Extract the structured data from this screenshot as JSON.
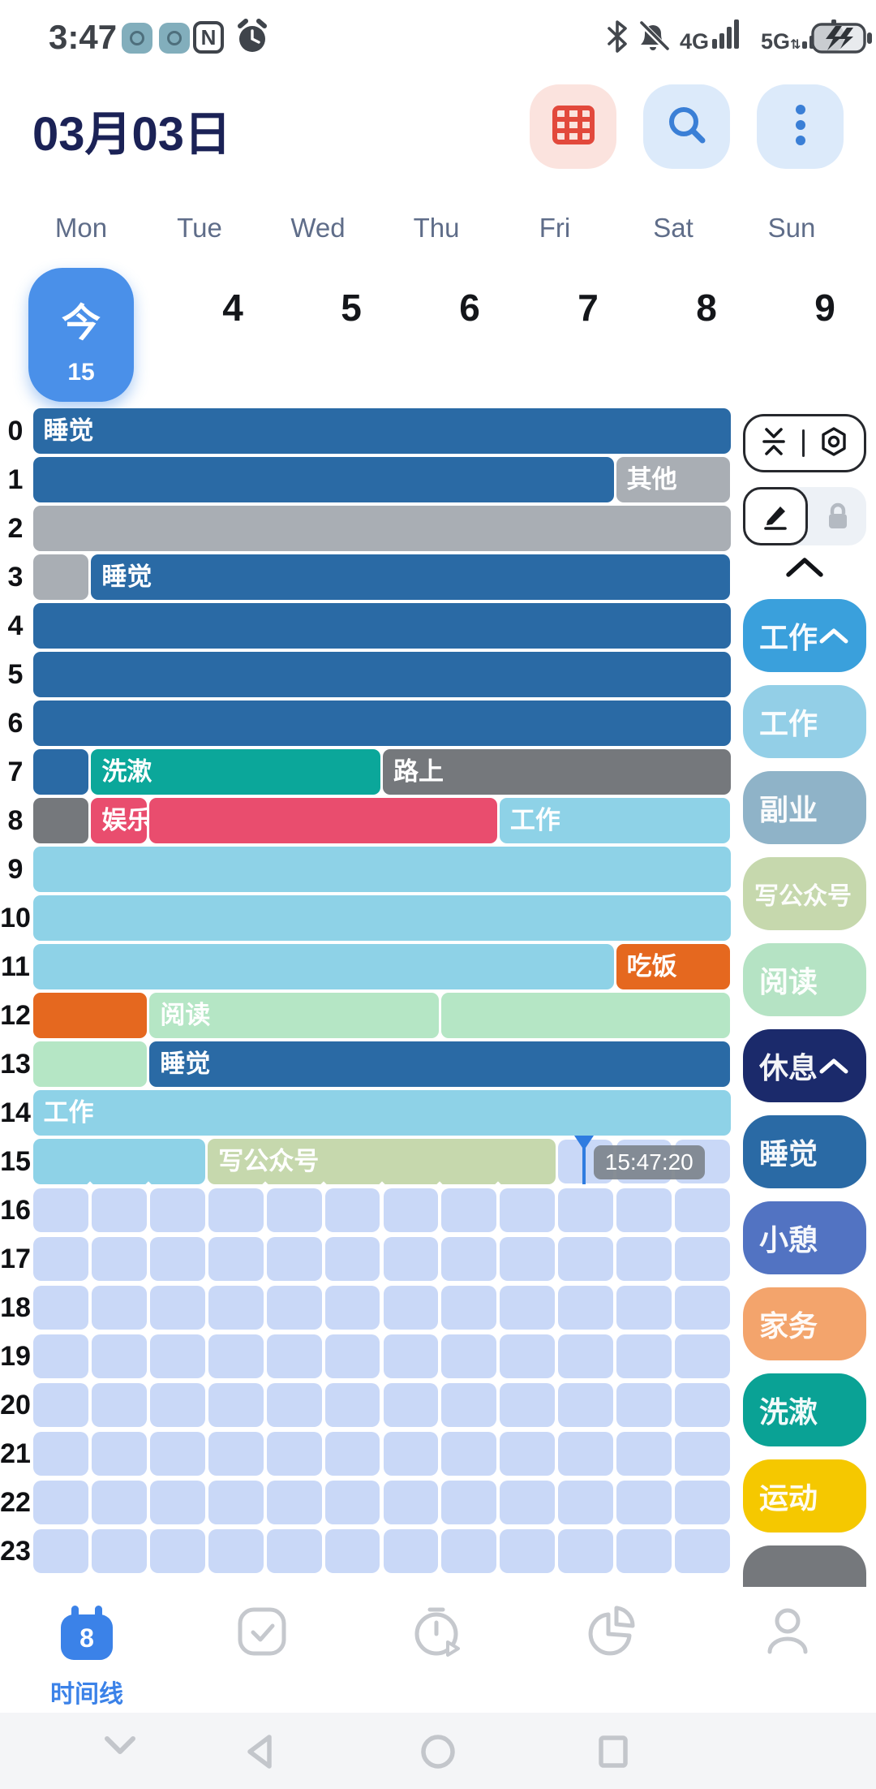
{
  "status_bar": {
    "time": "3:47",
    "network_4g": "4G",
    "network_5g": "5G"
  },
  "header": {
    "date": "03月03日",
    "buttons": [
      {
        "icon": "grid-calendar-icon",
        "bg": "#fbe3de",
        "fg": "#e2493c"
      },
      {
        "icon": "search-icon",
        "bg": "#dceafa",
        "fg": "#3a7fd6"
      },
      {
        "icon": "more-dots-icon",
        "bg": "#dceafa",
        "fg": "#3a7fd6"
      }
    ]
  },
  "week": {
    "days": [
      "Mon",
      "Tue",
      "Wed",
      "Thu",
      "Fri",
      "Sat",
      "Sun"
    ],
    "dates": [
      {
        "label": "今",
        "sub": "15",
        "today": true
      },
      {
        "label": "4"
      },
      {
        "label": "5"
      },
      {
        "label": "6"
      },
      {
        "label": "7"
      },
      {
        "label": "8"
      },
      {
        "label": "9"
      }
    ]
  },
  "palette": {
    "darkblue": "#2a6aa5",
    "gray": "#a9aeb4",
    "darkgray": "#75787c",
    "teal": "#0ba79a",
    "pink": "#e94d6e",
    "cyan": "#8ed2e7",
    "orange": "#e5681f",
    "mint": "#b5e6c5",
    "sage": "#c6d8ad",
    "empty_cell": "#c9d8f7",
    "accent_blue": "#3b82e8",
    "marker": "#2f7ce0"
  },
  "timeline": {
    "hours": [
      "0",
      "1",
      "2",
      "3",
      "4",
      "5",
      "6",
      "7",
      "8",
      "9",
      "10",
      "11",
      "12",
      "13",
      "14",
      "15",
      "16",
      "17",
      "18",
      "19",
      "20",
      "21",
      "22",
      "23"
    ],
    "rows": [
      {
        "hour": "0",
        "segments": [
          {
            "start": 0,
            "end": 60,
            "color": "darkblue",
            "label": "睡觉"
          }
        ]
      },
      {
        "hour": "1",
        "segments": [
          {
            "start": 0,
            "end": 50,
            "color": "darkblue"
          },
          {
            "start": 50,
            "end": 60,
            "color": "gray",
            "label": "其他"
          }
        ]
      },
      {
        "hour": "2",
        "segments": [
          {
            "start": 0,
            "end": 60,
            "color": "gray"
          }
        ]
      },
      {
        "hour": "3",
        "segments": [
          {
            "start": 0,
            "end": 5,
            "color": "gray"
          },
          {
            "start": 5,
            "end": 60,
            "color": "darkblue",
            "label": "睡觉"
          }
        ]
      },
      {
        "hour": "4",
        "segments": [
          {
            "start": 0,
            "end": 60,
            "color": "darkblue"
          }
        ]
      },
      {
        "hour": "5",
        "segments": [
          {
            "start": 0,
            "end": 60,
            "color": "darkblue"
          }
        ]
      },
      {
        "hour": "6",
        "segments": [
          {
            "start": 0,
            "end": 60,
            "color": "darkblue"
          }
        ]
      },
      {
        "hour": "7",
        "segments": [
          {
            "start": 0,
            "end": 5,
            "color": "darkblue"
          },
          {
            "start": 5,
            "end": 30,
            "color": "teal",
            "label": "洗漱"
          },
          {
            "start": 30,
            "end": 60,
            "color": "darkgray",
            "label": "路上"
          }
        ]
      },
      {
        "hour": "8",
        "segments": [
          {
            "start": 0,
            "end": 5,
            "color": "darkgray"
          },
          {
            "start": 5,
            "end": 10,
            "color": "pink",
            "label": "娱乐"
          },
          {
            "start": 10,
            "end": 40,
            "color": "pink"
          },
          {
            "start": 40,
            "end": 60,
            "color": "cyan",
            "label": "工作"
          }
        ]
      },
      {
        "hour": "9",
        "segments": [
          {
            "start": 0,
            "end": 60,
            "color": "cyan"
          }
        ]
      },
      {
        "hour": "10",
        "segments": [
          {
            "start": 0,
            "end": 60,
            "color": "cyan"
          }
        ]
      },
      {
        "hour": "11",
        "segments": [
          {
            "start": 0,
            "end": 50,
            "color": "cyan"
          },
          {
            "start": 50,
            "end": 60,
            "color": "orange",
            "label": "吃饭"
          }
        ]
      },
      {
        "hour": "12",
        "segments": [
          {
            "start": 0,
            "end": 10,
            "color": "orange"
          },
          {
            "start": 10,
            "end": 35,
            "color": "mint",
            "label": "阅读"
          },
          {
            "start": 35,
            "end": 60,
            "color": "mint"
          }
        ]
      },
      {
        "hour": "13",
        "segments": [
          {
            "start": 0,
            "end": 10,
            "color": "mint"
          },
          {
            "start": 10,
            "end": 60,
            "color": "darkblue",
            "label": "睡觉"
          }
        ]
      },
      {
        "hour": "14",
        "segments": [
          {
            "start": 0,
            "end": 60,
            "color": "cyan",
            "label": "工作"
          }
        ]
      },
      {
        "hour": "15",
        "segments": [
          {
            "start": 0,
            "end": 15,
            "color": "cyan"
          },
          {
            "start": 15,
            "end": 45,
            "color": "sage",
            "label": "写公众号"
          }
        ],
        "empty_from": 45
      },
      {
        "hour": "16",
        "segments": [],
        "empty_from": 0
      },
      {
        "hour": "17",
        "segments": [],
        "empty_from": 0
      },
      {
        "hour": "18",
        "segments": [],
        "empty_from": 0
      },
      {
        "hour": "19",
        "segments": [],
        "empty_from": 0
      },
      {
        "hour": "20",
        "segments": [],
        "empty_from": 0
      },
      {
        "hour": "21",
        "segments": [],
        "empty_from": 0
      },
      {
        "hour": "22",
        "segments": [],
        "empty_from": 0
      },
      {
        "hour": "23",
        "segments": [],
        "empty_from": 0
      }
    ],
    "marker": {
      "hour": 15,
      "minute": 47.33,
      "label": "15:47:20"
    }
  },
  "sidebar": {
    "tools": [
      "collapse-vertical-icon",
      "settings-gear-icon",
      "edit-pen-icon",
      "lock-icon",
      "chevron-up-icon"
    ],
    "categories": [
      {
        "label": "工作",
        "color": "#3aa0dc",
        "header": true
      },
      {
        "label": "工作",
        "color": "#93cfe7"
      },
      {
        "label": "副业",
        "color": "#8fb3c8"
      },
      {
        "label": "写公众号",
        "color": "#c6d8ad",
        "small": true
      },
      {
        "label": "阅读",
        "color": "#b5e3c4"
      },
      {
        "label": "休息",
        "color": "#1b2a6b",
        "header": true
      },
      {
        "label": "睡觉",
        "color": "#2a6aa5"
      },
      {
        "label": "小憩",
        "color": "#5273c2"
      },
      {
        "label": "家务",
        "color": "#f3a46c"
      },
      {
        "label": "洗漱",
        "color": "#0aa295"
      },
      {
        "label": "运动",
        "color": "#f5c800"
      },
      {
        "label": "",
        "color": "#75787c"
      }
    ]
  },
  "bottom_nav": {
    "items": [
      {
        "icon": "calendar-timeline-icon",
        "label": "时间线",
        "badge": "8",
        "active": true
      },
      {
        "icon": "tasks-check-icon"
      },
      {
        "icon": "timer-icon"
      },
      {
        "icon": "stats-pie-icon"
      },
      {
        "icon": "profile-icon"
      }
    ]
  },
  "android_nav": {
    "items": [
      "hide-keyboard-icon",
      "back-icon",
      "home-icon",
      "recents-icon"
    ]
  }
}
